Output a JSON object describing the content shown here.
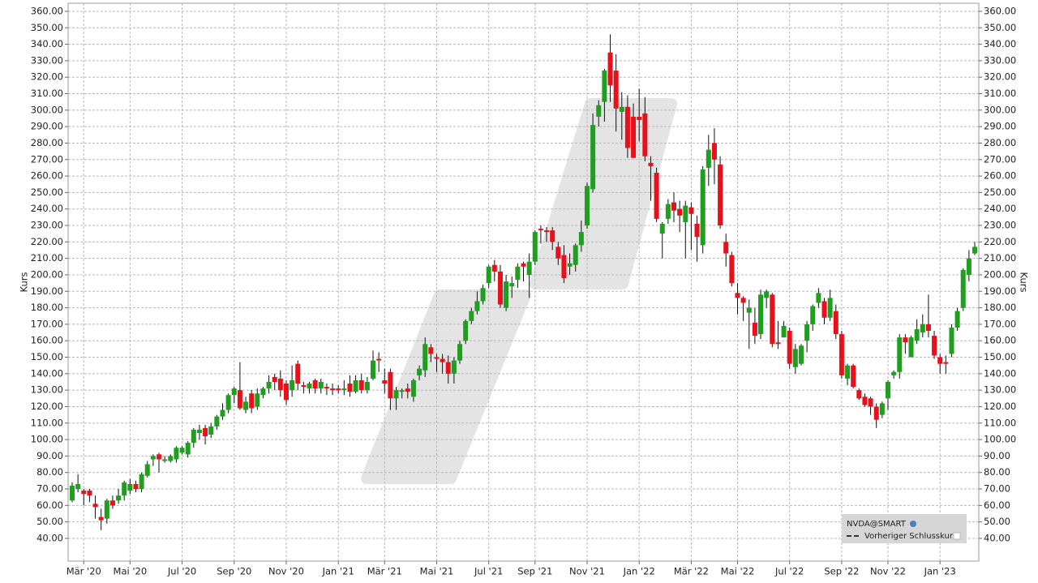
{
  "chart_data": {
    "type": "candlestick",
    "y_label": "Kurs",
    "legend": {
      "symbol": "NVDA@SMART",
      "previous_close": "Vorheriger Schlusskurs"
    },
    "up_color": "#1f9e1f",
    "down_color": "#e8101a",
    "grid": true,
    "ylim": [
      26.2,
      364.9
    ],
    "yticks": [
      {
        "value": 40,
        "label": "40.00"
      },
      {
        "value": 50,
        "label": "50.00"
      },
      {
        "value": 60,
        "label": "60.00"
      },
      {
        "value": 70,
        "label": "70.00"
      },
      {
        "value": 80,
        "label": "80.00"
      },
      {
        "value": 90,
        "label": "90.00"
      },
      {
        "value": 100,
        "label": "100.00"
      },
      {
        "value": 110,
        "label": "110.00"
      },
      {
        "value": 120,
        "label": "120.00"
      },
      {
        "value": 130,
        "label": "130.00"
      },
      {
        "value": 140,
        "label": "140.00"
      },
      {
        "value": 150,
        "label": "150.00"
      },
      {
        "value": 160,
        "label": "160.00"
      },
      {
        "value": 170,
        "label": "170.00"
      },
      {
        "value": 180,
        "label": "180.00"
      },
      {
        "value": 190,
        "label": "190.00"
      },
      {
        "value": 200,
        "label": "200.00"
      },
      {
        "value": 210,
        "label": "210.00"
      },
      {
        "value": 220,
        "label": "220.00"
      },
      {
        "value": 230,
        "label": "230.00"
      },
      {
        "value": 240,
        "label": "240.00"
      },
      {
        "value": 250,
        "label": "250.00"
      },
      {
        "value": 260,
        "label": "260.00"
      },
      {
        "value": 270,
        "label": "270.00"
      },
      {
        "value": 280,
        "label": "280.00"
      },
      {
        "value": 290,
        "label": "290.00"
      },
      {
        "value": 300,
        "label": "300.00"
      },
      {
        "value": 310,
        "label": "310.00"
      },
      {
        "value": 320,
        "label": "320.00"
      },
      {
        "value": 330,
        "label": "330.00"
      },
      {
        "value": 340,
        "label": "340.00"
      },
      {
        "value": 350,
        "label": "350.00"
      },
      {
        "value": 360,
        "label": "360.00"
      }
    ],
    "categories": [
      null,
      null,
      "Mär '20",
      null,
      null,
      null,
      null,
      null,
      null,
      null,
      "Mai '20",
      null,
      null,
      null,
      null,
      null,
      null,
      null,
      null,
      "Jul '20",
      null,
      null,
      null,
      null,
      null,
      null,
      null,
      null,
      "Sep '20",
      null,
      null,
      null,
      null,
      null,
      null,
      null,
      null,
      "Nov '20",
      null,
      null,
      null,
      null,
      null,
      null,
      null,
      null,
      "Jan '21",
      null,
      null,
      null,
      null,
      null,
      null,
      null,
      "Mär '21",
      null,
      null,
      null,
      null,
      null,
      null,
      null,
      null,
      "Mai '21",
      null,
      null,
      null,
      null,
      null,
      null,
      null,
      null,
      "Jul '21",
      null,
      null,
      null,
      null,
      null,
      null,
      null,
      "Sep '21",
      null,
      null,
      null,
      null,
      null,
      null,
      null,
      null,
      "Nov '21",
      null,
      null,
      null,
      null,
      null,
      null,
      null,
      null,
      "Jan '22",
      null,
      null,
      null,
      null,
      null,
      null,
      null,
      null,
      "Mär '22",
      null,
      null,
      null,
      null,
      null,
      null,
      null,
      "Mai '22",
      null,
      null,
      null,
      null,
      null,
      null,
      null,
      null,
      "Jul '22",
      null,
      null,
      null,
      null,
      null,
      null,
      null,
      null,
      "Sep '22",
      null,
      null,
      null,
      null,
      null,
      null,
      null,
      "Nov '22",
      null,
      null,
      null,
      null,
      null,
      null,
      null,
      null,
      "Jan '23",
      null,
      null,
      null,
      null,
      null,
      null
    ],
    "open": [
      63,
      70,
      69,
      69,
      61,
      53,
      52,
      63,
      63,
      66,
      69,
      73,
      70,
      78,
      88,
      91,
      87,
      87,
      88,
      92,
      91,
      98,
      104,
      107,
      103,
      108,
      114,
      118,
      127,
      130,
      118,
      128,
      120,
      127,
      131,
      138,
      137,
      134,
      130,
      146,
      133,
      131,
      136,
      131,
      132,
      131,
      131,
      130,
      134,
      129,
      136,
      130,
      137,
      149,
      136,
      141,
      125,
      129,
      131,
      126,
      139,
      142,
      156,
      150,
      149,
      147,
      140,
      148,
      160,
      172,
      178,
      184,
      195,
      206,
      202,
      180,
      193,
      197,
      207,
      200,
      208,
      228,
      227,
      227,
      217,
      212,
      205,
      206,
      218,
      230,
      252,
      296,
      305,
      335,
      324,
      299,
      302,
      296,
      296,
      298,
      268,
      262,
      225,
      234,
      244,
      240,
      232,
      241,
      231,
      218,
      265,
      280,
      267,
      220,
      212,
      189,
      186,
      177,
      171,
      164,
      186,
      188,
      159,
      162,
      166,
      144,
      146,
      160,
      170,
      183,
      184,
      174,
      178,
      164,
      137,
      145,
      130,
      126,
      125,
      120,
      115,
      125,
      139,
      141,
      162,
      150,
      160,
      165,
      170,
      163,
      150,
      147,
      152,
      168,
      180,
      200,
      213
    ],
    "high": [
      74,
      79,
      70,
      70,
      66,
      58,
      64,
      66,
      70,
      75,
      76,
      75,
      80,
      87,
      91,
      92,
      90,
      91,
      96,
      96,
      99,
      107,
      109,
      109,
      110,
      115,
      122,
      128,
      132,
      147,
      126,
      130,
      131,
      132,
      139,
      140,
      142,
      136,
      145,
      148,
      135,
      135,
      137,
      137,
      134,
      134,
      133,
      136,
      139,
      139,
      140,
      138,
      154,
      153,
      143,
      143,
      132,
      131,
      134,
      137,
      145,
      162,
      158,
      152,
      152,
      151,
      150,
      160,
      173,
      180,
      190,
      194,
      206,
      209,
      206,
      200,
      199,
      207,
      208,
      213,
      227,
      230,
      229,
      229,
      220,
      218,
      213,
      219,
      233,
      256,
      298,
      306,
      325,
      346,
      334,
      311,
      309,
      304,
      313,
      308,
      272,
      265,
      232,
      246,
      250,
      245,
      245,
      244,
      236,
      266,
      285,
      289,
      272,
      225,
      214,
      195,
      187,
      185,
      180,
      191,
      191,
      189,
      172,
      172,
      168,
      158,
      158,
      172,
      182,
      192,
      186,
      191,
      182,
      166,
      146,
      146,
      131,
      128,
      126,
      122,
      123,
      136,
      142,
      164,
      164,
      163,
      173,
      176,
      188,
      166,
      152,
      151,
      170,
      180,
      204,
      215,
      220
    ],
    "low": [
      62,
      68,
      60,
      62,
      52,
      45,
      49,
      58,
      61,
      63,
      67,
      68,
      68,
      77,
      84,
      80,
      86,
      86,
      86,
      91,
      89,
      95,
      100,
      97,
      101,
      106,
      112,
      116,
      122,
      118,
      116,
      116,
      118,
      125,
      128,
      130,
      126,
      121,
      126,
      130,
      128,
      128,
      128,
      128,
      127,
      127,
      128,
      127,
      126,
      128,
      128,
      128,
      136,
      141,
      128,
      118,
      118,
      125,
      125,
      123,
      136,
      138,
      147,
      141,
      140,
      134,
      134,
      146,
      158,
      170,
      176,
      182,
      192,
      196,
      180,
      178,
      186,
      192,
      196,
      186,
      206,
      219,
      220,
      215,
      206,
      195,
      200,
      202,
      214,
      228,
      250,
      290,
      293,
      305,
      287,
      282,
      271,
      271,
      281,
      269,
      245,
      232,
      210,
      231,
      232,
      226,
      210,
      215,
      208,
      213,
      254,
      255,
      228,
      205,
      193,
      176,
      172,
      155,
      158,
      161,
      180,
      156,
      155,
      162,
      143,
      140,
      145,
      153,
      166,
      180,
      170,
      172,
      161,
      137,
      133,
      131,
      124,
      120,
      115,
      107,
      113,
      118,
      137,
      137,
      152,
      150,
      158,
      162,
      162,
      149,
      140,
      140,
      150,
      166,
      178,
      196,
      212
    ],
    "close": [
      72,
      73,
      67,
      66,
      59,
      51,
      63,
      60,
      66,
      74,
      73,
      70,
      79,
      85,
      90,
      88,
      88,
      90,
      95,
      95,
      98,
      106,
      106,
      102,
      108,
      114,
      118,
      127,
      131,
      119,
      123,
      119,
      128,
      131,
      135,
      135,
      130,
      124,
      136,
      134,
      132,
      134,
      131,
      135,
      131,
      130,
      130,
      131,
      129,
      136,
      130,
      135,
      148,
      148,
      134,
      125,
      130,
      130,
      129,
      136,
      143,
      158,
      152,
      149,
      147,
      140,
      148,
      158,
      172,
      178,
      184,
      192,
      205,
      202,
      182,
      196,
      195,
      205,
      205,
      208,
      226,
      227,
      226,
      220,
      210,
      198,
      207,
      218,
      226,
      254,
      291,
      303,
      324,
      315,
      301,
      302,
      277,
      271,
      294,
      272,
      266,
      234,
      231,
      243,
      239,
      236,
      242,
      237,
      223,
      264,
      276,
      270,
      230,
      213,
      195,
      186,
      183,
      180,
      163,
      188,
      190,
      158,
      158,
      169,
      146,
      155,
      157,
      170,
      181,
      189,
      174,
      186,
      164,
      139,
      145,
      132,
      125,
      121,
      120,
      112,
      122,
      135,
      141,
      162,
      159,
      162,
      167,
      170,
      166,
      151,
      146,
      146,
      168,
      178,
      203,
      210,
      217
    ]
  }
}
